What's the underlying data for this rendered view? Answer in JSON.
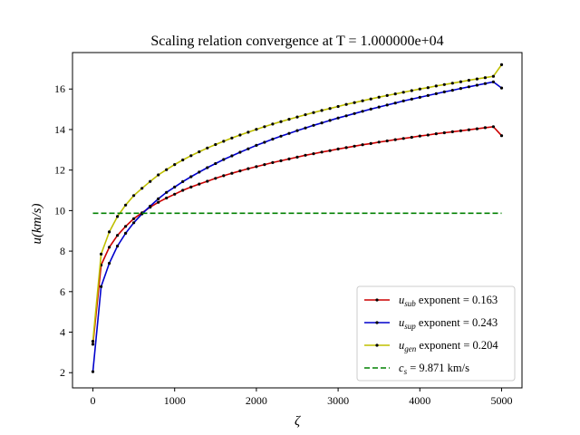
{
  "chart_data": {
    "type": "line",
    "title": "Scaling relation convergence at T = 1.000000e+04",
    "xlabel": "ζ",
    "ylabel": "u(km/s)",
    "xlim": [
      -250,
      5250
    ],
    "ylim": [
      1.25,
      17.8
    ],
    "xticks": [
      "0",
      "1000",
      "2000",
      "3000",
      "4000",
      "5000"
    ],
    "yticks": [
      "2",
      "4",
      "6",
      "8",
      "10",
      "12",
      "14",
      "16"
    ],
    "grid": false,
    "legend_position": "lower-right",
    "series": [
      {
        "symbol": "u",
        "sub": "sub",
        "text": "exponent = 0.163",
        "color": "#cc0000",
        "marker_color": "#000000",
        "x": [
          0,
          100,
          200,
          300,
          400,
          500,
          600,
          700,
          800,
          900,
          1000,
          1100,
          1200,
          1300,
          1400,
          1500,
          1600,
          1700,
          1800,
          1900,
          2000,
          2100,
          2200,
          2300,
          2400,
          2500,
          2600,
          2700,
          2800,
          2900,
          3000,
          3100,
          3200,
          3300,
          3400,
          3500,
          3600,
          3700,
          3800,
          3900,
          4000,
          4100,
          4200,
          4300,
          4400,
          4500,
          4600,
          4700,
          4800,
          4900,
          5000
        ],
        "y": [
          3.4,
          7.31,
          8.19,
          8.78,
          9.22,
          9.6,
          9.89,
          10.17,
          10.41,
          10.62,
          10.81,
          11.0,
          11.16,
          11.31,
          11.45,
          11.59,
          11.72,
          11.84,
          11.96,
          12.07,
          12.17,
          12.27,
          12.37,
          12.46,
          12.55,
          12.64,
          12.73,
          12.81,
          12.89,
          12.96,
          13.04,
          13.11,
          13.18,
          13.25,
          13.31,
          13.38,
          13.44,
          13.5,
          13.56,
          13.62,
          13.68,
          13.73,
          13.79,
          13.84,
          13.89,
          13.94,
          13.99,
          14.04,
          14.09,
          14.14,
          13.7
        ]
      },
      {
        "symbol": "u",
        "sub": "sup",
        "text": "exponent = 0.243",
        "color": "#0000cc",
        "marker_color": "#000000",
        "x": [
          0,
          100,
          200,
          300,
          400,
          500,
          600,
          700,
          800,
          900,
          1000,
          1100,
          1200,
          1300,
          1400,
          1500,
          1600,
          1700,
          1800,
          1900,
          2000,
          2100,
          2200,
          2300,
          2400,
          2500,
          2600,
          2700,
          2800,
          2900,
          3000,
          3100,
          3200,
          3300,
          3400,
          3500,
          3600,
          3700,
          3800,
          3900,
          4000,
          4100,
          4200,
          4300,
          4400,
          4500,
          4600,
          4700,
          4800,
          4900,
          5000
        ],
        "y": [
          2.05,
          6.25,
          7.4,
          8.25,
          8.88,
          9.4,
          9.84,
          10.22,
          10.58,
          10.9,
          11.16,
          11.43,
          11.67,
          11.9,
          12.12,
          12.32,
          12.52,
          12.7,
          12.88,
          13.05,
          13.22,
          13.37,
          13.53,
          13.67,
          13.81,
          13.95,
          14.08,
          14.21,
          14.33,
          14.45,
          14.57,
          14.68,
          14.79,
          14.9,
          15.01,
          15.11,
          15.21,
          15.31,
          15.41,
          15.5,
          15.59,
          15.68,
          15.77,
          15.86,
          15.94,
          16.03,
          16.11,
          16.19,
          16.27,
          16.35,
          16.05
        ]
      },
      {
        "symbol": "u",
        "sub": "gen",
        "text": "exponent = 0.204",
        "color": "#bfbf00",
        "marker_color": "#000000",
        "x": [
          0,
          100,
          200,
          300,
          400,
          500,
          600,
          700,
          800,
          900,
          1000,
          1100,
          1200,
          1300,
          1400,
          1500,
          1600,
          1700,
          1800,
          1900,
          2000,
          2100,
          2200,
          2300,
          2400,
          2500,
          2600,
          2700,
          2800,
          2900,
          3000,
          3100,
          3200,
          3300,
          3400,
          3500,
          3600,
          3700,
          3800,
          3900,
          4000,
          4100,
          4200,
          4300,
          4400,
          4500,
          4600,
          4700,
          4800,
          4900,
          5000
        ],
        "y": [
          3.55,
          7.85,
          8.95,
          9.71,
          10.27,
          10.74,
          11.1,
          11.44,
          11.76,
          12.02,
          12.27,
          12.5,
          12.71,
          12.9,
          13.09,
          13.26,
          13.42,
          13.58,
          13.73,
          13.87,
          14.01,
          14.14,
          14.27,
          14.39,
          14.51,
          14.62,
          14.73,
          14.84,
          14.94,
          15.04,
          15.14,
          15.24,
          15.33,
          15.42,
          15.51,
          15.6,
          15.68,
          15.76,
          15.84,
          15.92,
          16.0,
          16.07,
          16.15,
          16.22,
          16.29,
          16.36,
          16.43,
          16.5,
          16.56,
          16.63,
          17.2
        ]
      },
      {
        "symbol": "c",
        "sub": "s",
        "text": "= 9.871 km/s",
        "color": "#008000",
        "dashed": true,
        "x": [
          0,
          5000
        ],
        "y": [
          9.871,
          9.871
        ]
      }
    ]
  }
}
